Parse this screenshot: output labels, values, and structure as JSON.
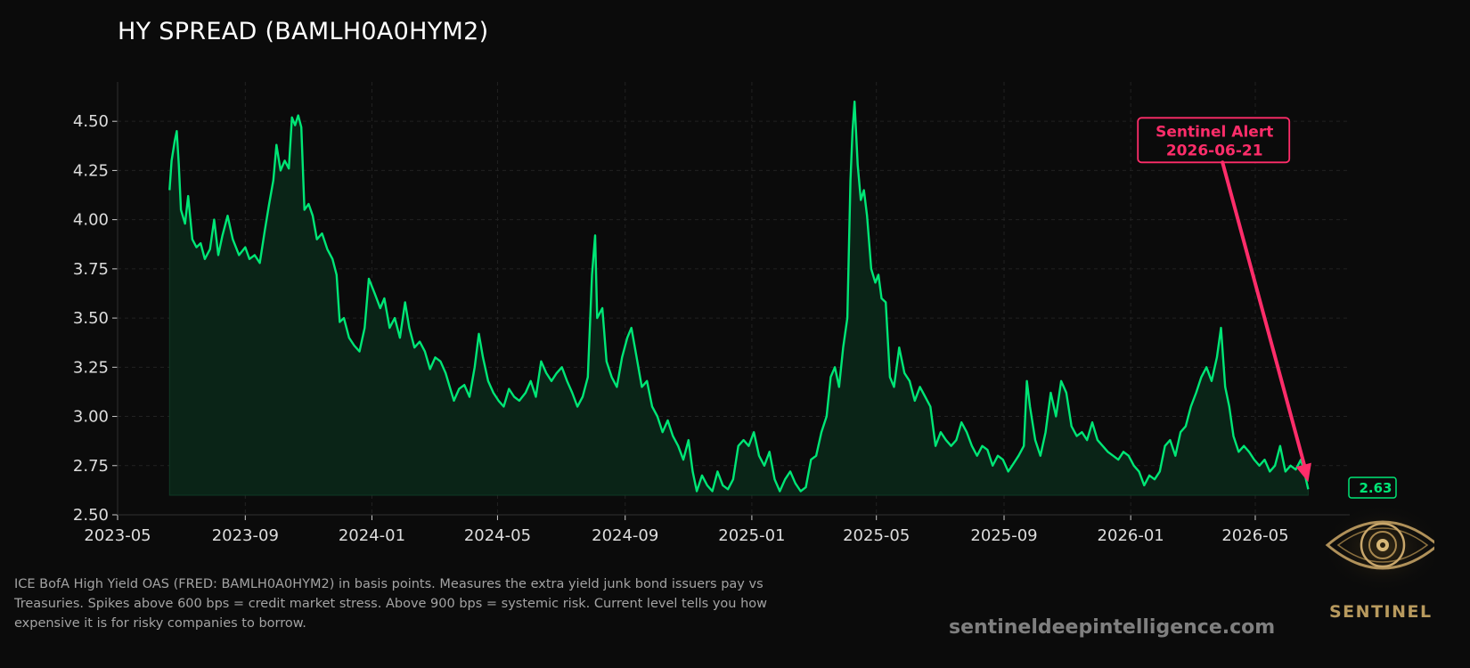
{
  "colors": {
    "background": "#0b0b0b",
    "line": "#00e676",
    "fill": "#0a2417",
    "alert": "#ff2d6a",
    "grid": "#222222",
    "axis": "#cccccc"
  },
  "chart_data": {
    "type": "area",
    "title": "HY SPREAD (BAMLH0A0HYM2)",
    "xlabel": "",
    "ylabel": "",
    "x_range": [
      "2023-05-01",
      "2026-07-31"
    ],
    "ylim": [
      2.5,
      4.7
    ],
    "grid": true,
    "x_ticks": [
      "2023-05",
      "2023-09",
      "2024-01",
      "2024-05",
      "2024-09",
      "2025-01",
      "2025-05",
      "2025-09",
      "2026-01",
      "2026-05"
    ],
    "y_ticks": [
      "2.50",
      "2.75",
      "3.00",
      "3.25",
      "3.50",
      "3.75",
      "4.00",
      "4.25",
      "4.50"
    ],
    "series": [
      {
        "values": [
          [
            "2023-06-20",
            4.15
          ],
          [
            "2023-06-22",
            4.3
          ],
          [
            "2023-06-25",
            4.4
          ],
          [
            "2023-06-27",
            4.45
          ],
          [
            "2023-06-29",
            4.28
          ],
          [
            "2023-07-01",
            4.05
          ],
          [
            "2023-07-05",
            3.98
          ],
          [
            "2023-07-08",
            4.12
          ],
          [
            "2023-07-12",
            3.9
          ],
          [
            "2023-07-16",
            3.86
          ],
          [
            "2023-07-20",
            3.88
          ],
          [
            "2023-07-24",
            3.8
          ],
          [
            "2023-07-29",
            3.85
          ],
          [
            "2023-08-02",
            4.0
          ],
          [
            "2023-08-06",
            3.82
          ],
          [
            "2023-08-10",
            3.92
          ],
          [
            "2023-08-15",
            4.02
          ],
          [
            "2023-08-20",
            3.9
          ],
          [
            "2023-08-26",
            3.82
          ],
          [
            "2023-09-01",
            3.86
          ],
          [
            "2023-09-05",
            3.8
          ],
          [
            "2023-09-10",
            3.82
          ],
          [
            "2023-09-15",
            3.78
          ],
          [
            "2023-09-20",
            3.95
          ],
          [
            "2023-09-24",
            4.08
          ],
          [
            "2023-09-28",
            4.2
          ],
          [
            "2023-10-01",
            4.38
          ],
          [
            "2023-10-05",
            4.25
          ],
          [
            "2023-10-09",
            4.3
          ],
          [
            "2023-10-13",
            4.26
          ],
          [
            "2023-10-16",
            4.52
          ],
          [
            "2023-10-19",
            4.48
          ],
          [
            "2023-10-22",
            4.53
          ],
          [
            "2023-10-25",
            4.47
          ],
          [
            "2023-10-28",
            4.05
          ],
          [
            "2023-11-01",
            4.08
          ],
          [
            "2023-11-05",
            4.02
          ],
          [
            "2023-11-09",
            3.9
          ],
          [
            "2023-11-14",
            3.93
          ],
          [
            "2023-11-19",
            3.85
          ],
          [
            "2023-11-24",
            3.8
          ],
          [
            "2023-11-28",
            3.72
          ],
          [
            "2023-12-01",
            3.48
          ],
          [
            "2023-12-05",
            3.5
          ],
          [
            "2023-12-10",
            3.4
          ],
          [
            "2023-12-15",
            3.36
          ],
          [
            "2023-12-20",
            3.33
          ],
          [
            "2023-12-25",
            3.45
          ],
          [
            "2023-12-29",
            3.7
          ],
          [
            "2024-01-04",
            3.62
          ],
          [
            "2024-01-09",
            3.55
          ],
          [
            "2024-01-13",
            3.6
          ],
          [
            "2024-01-18",
            3.45
          ],
          [
            "2024-01-23",
            3.5
          ],
          [
            "2024-01-28",
            3.4
          ],
          [
            "2024-02-02",
            3.58
          ],
          [
            "2024-02-06",
            3.45
          ],
          [
            "2024-02-11",
            3.35
          ],
          [
            "2024-02-16",
            3.38
          ],
          [
            "2024-02-21",
            3.33
          ],
          [
            "2024-02-26",
            3.24
          ],
          [
            "2024-03-02",
            3.3
          ],
          [
            "2024-03-07",
            3.28
          ],
          [
            "2024-03-12",
            3.22
          ],
          [
            "2024-03-16",
            3.15
          ],
          [
            "2024-03-20",
            3.08
          ],
          [
            "2024-03-25",
            3.14
          ],
          [
            "2024-03-30",
            3.16
          ],
          [
            "2024-04-04",
            3.1
          ],
          [
            "2024-04-09",
            3.25
          ],
          [
            "2024-04-13",
            3.42
          ],
          [
            "2024-04-17",
            3.3
          ],
          [
            "2024-04-22",
            3.18
          ],
          [
            "2024-04-27",
            3.12
          ],
          [
            "2024-05-02",
            3.08
          ],
          [
            "2024-05-07",
            3.05
          ],
          [
            "2024-05-12",
            3.14
          ],
          [
            "2024-05-17",
            3.1
          ],
          [
            "2024-05-22",
            3.08
          ],
          [
            "2024-05-28",
            3.12
          ],
          [
            "2024-06-02",
            3.18
          ],
          [
            "2024-06-07",
            3.1
          ],
          [
            "2024-06-12",
            3.28
          ],
          [
            "2024-06-17",
            3.22
          ],
          [
            "2024-06-22",
            3.18
          ],
          [
            "2024-06-27",
            3.22
          ],
          [
            "2024-07-02",
            3.25
          ],
          [
            "2024-07-07",
            3.18
          ],
          [
            "2024-07-12",
            3.12
          ],
          [
            "2024-07-17",
            3.05
          ],
          [
            "2024-07-22",
            3.1
          ],
          [
            "2024-07-27",
            3.2
          ],
          [
            "2024-07-31",
            3.72
          ],
          [
            "2024-08-03",
            3.92
          ],
          [
            "2024-08-05",
            3.5
          ],
          [
            "2024-08-10",
            3.55
          ],
          [
            "2024-08-14",
            3.28
          ],
          [
            "2024-08-19",
            3.2
          ],
          [
            "2024-08-24",
            3.15
          ],
          [
            "2024-08-29",
            3.3
          ],
          [
            "2024-09-03",
            3.4
          ],
          [
            "2024-09-07",
            3.45
          ],
          [
            "2024-09-12",
            3.3
          ],
          [
            "2024-09-17",
            3.15
          ],
          [
            "2024-09-22",
            3.18
          ],
          [
            "2024-09-27",
            3.05
          ],
          [
            "2024-10-02",
            3.0
          ],
          [
            "2024-10-07",
            2.92
          ],
          [
            "2024-10-12",
            2.98
          ],
          [
            "2024-10-17",
            2.9
          ],
          [
            "2024-10-22",
            2.85
          ],
          [
            "2024-10-27",
            2.78
          ],
          [
            "2024-11-01",
            2.88
          ],
          [
            "2024-11-05",
            2.72
          ],
          [
            "2024-11-09",
            2.62
          ],
          [
            "2024-11-14",
            2.7
          ],
          [
            "2024-11-19",
            2.65
          ],
          [
            "2024-11-24",
            2.62
          ],
          [
            "2024-11-29",
            2.72
          ],
          [
            "2024-12-04",
            2.65
          ],
          [
            "2024-12-09",
            2.63
          ],
          [
            "2024-12-14",
            2.68
          ],
          [
            "2024-12-19",
            2.85
          ],
          [
            "2024-12-24",
            2.88
          ],
          [
            "2024-12-29",
            2.85
          ],
          [
            "2025-01-03",
            2.92
          ],
          [
            "2025-01-08",
            2.8
          ],
          [
            "2025-01-13",
            2.75
          ],
          [
            "2025-01-18",
            2.82
          ],
          [
            "2025-01-23",
            2.68
          ],
          [
            "2025-01-28",
            2.62
          ],
          [
            "2025-02-02",
            2.68
          ],
          [
            "2025-02-07",
            2.72
          ],
          [
            "2025-02-12",
            2.66
          ],
          [
            "2025-02-17",
            2.62
          ],
          [
            "2025-02-22",
            2.64
          ],
          [
            "2025-02-27",
            2.78
          ],
          [
            "2025-03-04",
            2.8
          ],
          [
            "2025-03-09",
            2.92
          ],
          [
            "2025-03-14",
            3.0
          ],
          [
            "2025-03-18",
            3.2
          ],
          [
            "2025-03-22",
            3.25
          ],
          [
            "2025-03-26",
            3.15
          ],
          [
            "2025-03-30",
            3.35
          ],
          [
            "2025-04-03",
            3.5
          ],
          [
            "2025-04-06",
            4.2
          ],
          [
            "2025-04-08",
            4.45
          ],
          [
            "2025-04-10",
            4.6
          ],
          [
            "2025-04-13",
            4.28
          ],
          [
            "2025-04-16",
            4.1
          ],
          [
            "2025-04-19",
            4.15
          ],
          [
            "2025-04-22",
            4.02
          ],
          [
            "2025-04-26",
            3.75
          ],
          [
            "2025-04-30",
            3.68
          ],
          [
            "2025-05-03",
            3.72
          ],
          [
            "2025-05-06",
            3.6
          ],
          [
            "2025-05-10",
            3.58
          ],
          [
            "2025-05-14",
            3.2
          ],
          [
            "2025-05-18",
            3.15
          ],
          [
            "2025-05-23",
            3.35
          ],
          [
            "2025-05-28",
            3.22
          ],
          [
            "2025-06-02",
            3.18
          ],
          [
            "2025-06-07",
            3.08
          ],
          [
            "2025-06-12",
            3.15
          ],
          [
            "2025-06-17",
            3.1
          ],
          [
            "2025-06-22",
            3.05
          ],
          [
            "2025-06-27",
            2.85
          ],
          [
            "2025-07-02",
            2.92
          ],
          [
            "2025-07-07",
            2.88
          ],
          [
            "2025-07-12",
            2.85
          ],
          [
            "2025-07-17",
            2.88
          ],
          [
            "2025-07-22",
            2.97
          ],
          [
            "2025-07-27",
            2.92
          ],
          [
            "2025-08-01",
            2.85
          ],
          [
            "2025-08-06",
            2.8
          ],
          [
            "2025-08-11",
            2.85
          ],
          [
            "2025-08-16",
            2.83
          ],
          [
            "2025-08-21",
            2.75
          ],
          [
            "2025-08-26",
            2.8
          ],
          [
            "2025-08-31",
            2.78
          ],
          [
            "2025-09-05",
            2.72
          ],
          [
            "2025-09-10",
            2.76
          ],
          [
            "2025-09-15",
            2.8
          ],
          [
            "2025-09-20",
            2.85
          ],
          [
            "2025-09-23",
            3.18
          ],
          [
            "2025-09-26",
            3.05
          ],
          [
            "2025-10-01",
            2.88
          ],
          [
            "2025-10-06",
            2.8
          ],
          [
            "2025-10-11",
            2.92
          ],
          [
            "2025-10-16",
            3.12
          ],
          [
            "2025-10-21",
            3.0
          ],
          [
            "2025-10-26",
            3.18
          ],
          [
            "2025-10-31",
            3.12
          ],
          [
            "2025-11-05",
            2.95
          ],
          [
            "2025-11-10",
            2.9
          ],
          [
            "2025-11-15",
            2.92
          ],
          [
            "2025-11-20",
            2.88
          ],
          [
            "2025-11-25",
            2.97
          ],
          [
            "2025-11-30",
            2.88
          ],
          [
            "2025-12-05",
            2.85
          ],
          [
            "2025-12-10",
            2.82
          ],
          [
            "2025-12-15",
            2.8
          ],
          [
            "2025-12-20",
            2.78
          ],
          [
            "2025-12-25",
            2.82
          ],
          [
            "2025-12-30",
            2.8
          ],
          [
            "2026-01-04",
            2.75
          ],
          [
            "2026-01-09",
            2.72
          ],
          [
            "2026-01-14",
            2.65
          ],
          [
            "2026-01-19",
            2.7
          ],
          [
            "2026-01-24",
            2.68
          ],
          [
            "2026-01-29",
            2.72
          ],
          [
            "2026-02-03",
            2.85
          ],
          [
            "2026-02-08",
            2.88
          ],
          [
            "2026-02-13",
            2.8
          ],
          [
            "2026-02-18",
            2.92
          ],
          [
            "2026-02-23",
            2.95
          ],
          [
            "2026-02-28",
            3.05
          ],
          [
            "2026-03-05",
            3.12
          ],
          [
            "2026-03-10",
            3.2
          ],
          [
            "2026-03-15",
            3.25
          ],
          [
            "2026-03-20",
            3.18
          ],
          [
            "2026-03-25",
            3.3
          ],
          [
            "2026-03-29",
            3.45
          ],
          [
            "2026-04-02",
            3.15
          ],
          [
            "2026-04-06",
            3.05
          ],
          [
            "2026-04-10",
            2.9
          ],
          [
            "2026-04-15",
            2.82
          ],
          [
            "2026-04-20",
            2.85
          ],
          [
            "2026-04-25",
            2.82
          ],
          [
            "2026-04-30",
            2.78
          ],
          [
            "2026-05-05",
            2.75
          ],
          [
            "2026-05-10",
            2.78
          ],
          [
            "2026-05-15",
            2.72
          ],
          [
            "2026-05-20",
            2.75
          ],
          [
            "2026-05-25",
            2.85
          ],
          [
            "2026-05-30",
            2.72
          ],
          [
            "2026-06-04",
            2.75
          ],
          [
            "2026-06-09",
            2.73
          ],
          [
            "2026-06-14",
            2.78
          ],
          [
            "2026-06-18",
            2.7
          ],
          [
            "2026-06-21",
            2.63
          ]
        ]
      }
    ],
    "annotations": [
      {
        "type": "arrow_label",
        "lines": [
          "Sentinel Alert",
          "2026-06-21"
        ],
        "date": "2026-06-21",
        "value": 2.63,
        "label_anchor": [
          "2026-03-15",
          4.35
        ]
      }
    ],
    "last_value_label": "2.63"
  },
  "caption": "ICE BofA High Yield OAS (FRED: BAMLH0A0HYM2) in basis points. Measures the extra yield junk bond issuers pay vs Treasuries. Spikes above 600 bps = credit market stress. Above 900 bps = systemic risk. Current level tells you how expensive it is for risky companies to borrow.",
  "site": "sentineldeepintelligence.com",
  "logo": {
    "icon": "eye-icon",
    "text": "SENTINEL"
  }
}
